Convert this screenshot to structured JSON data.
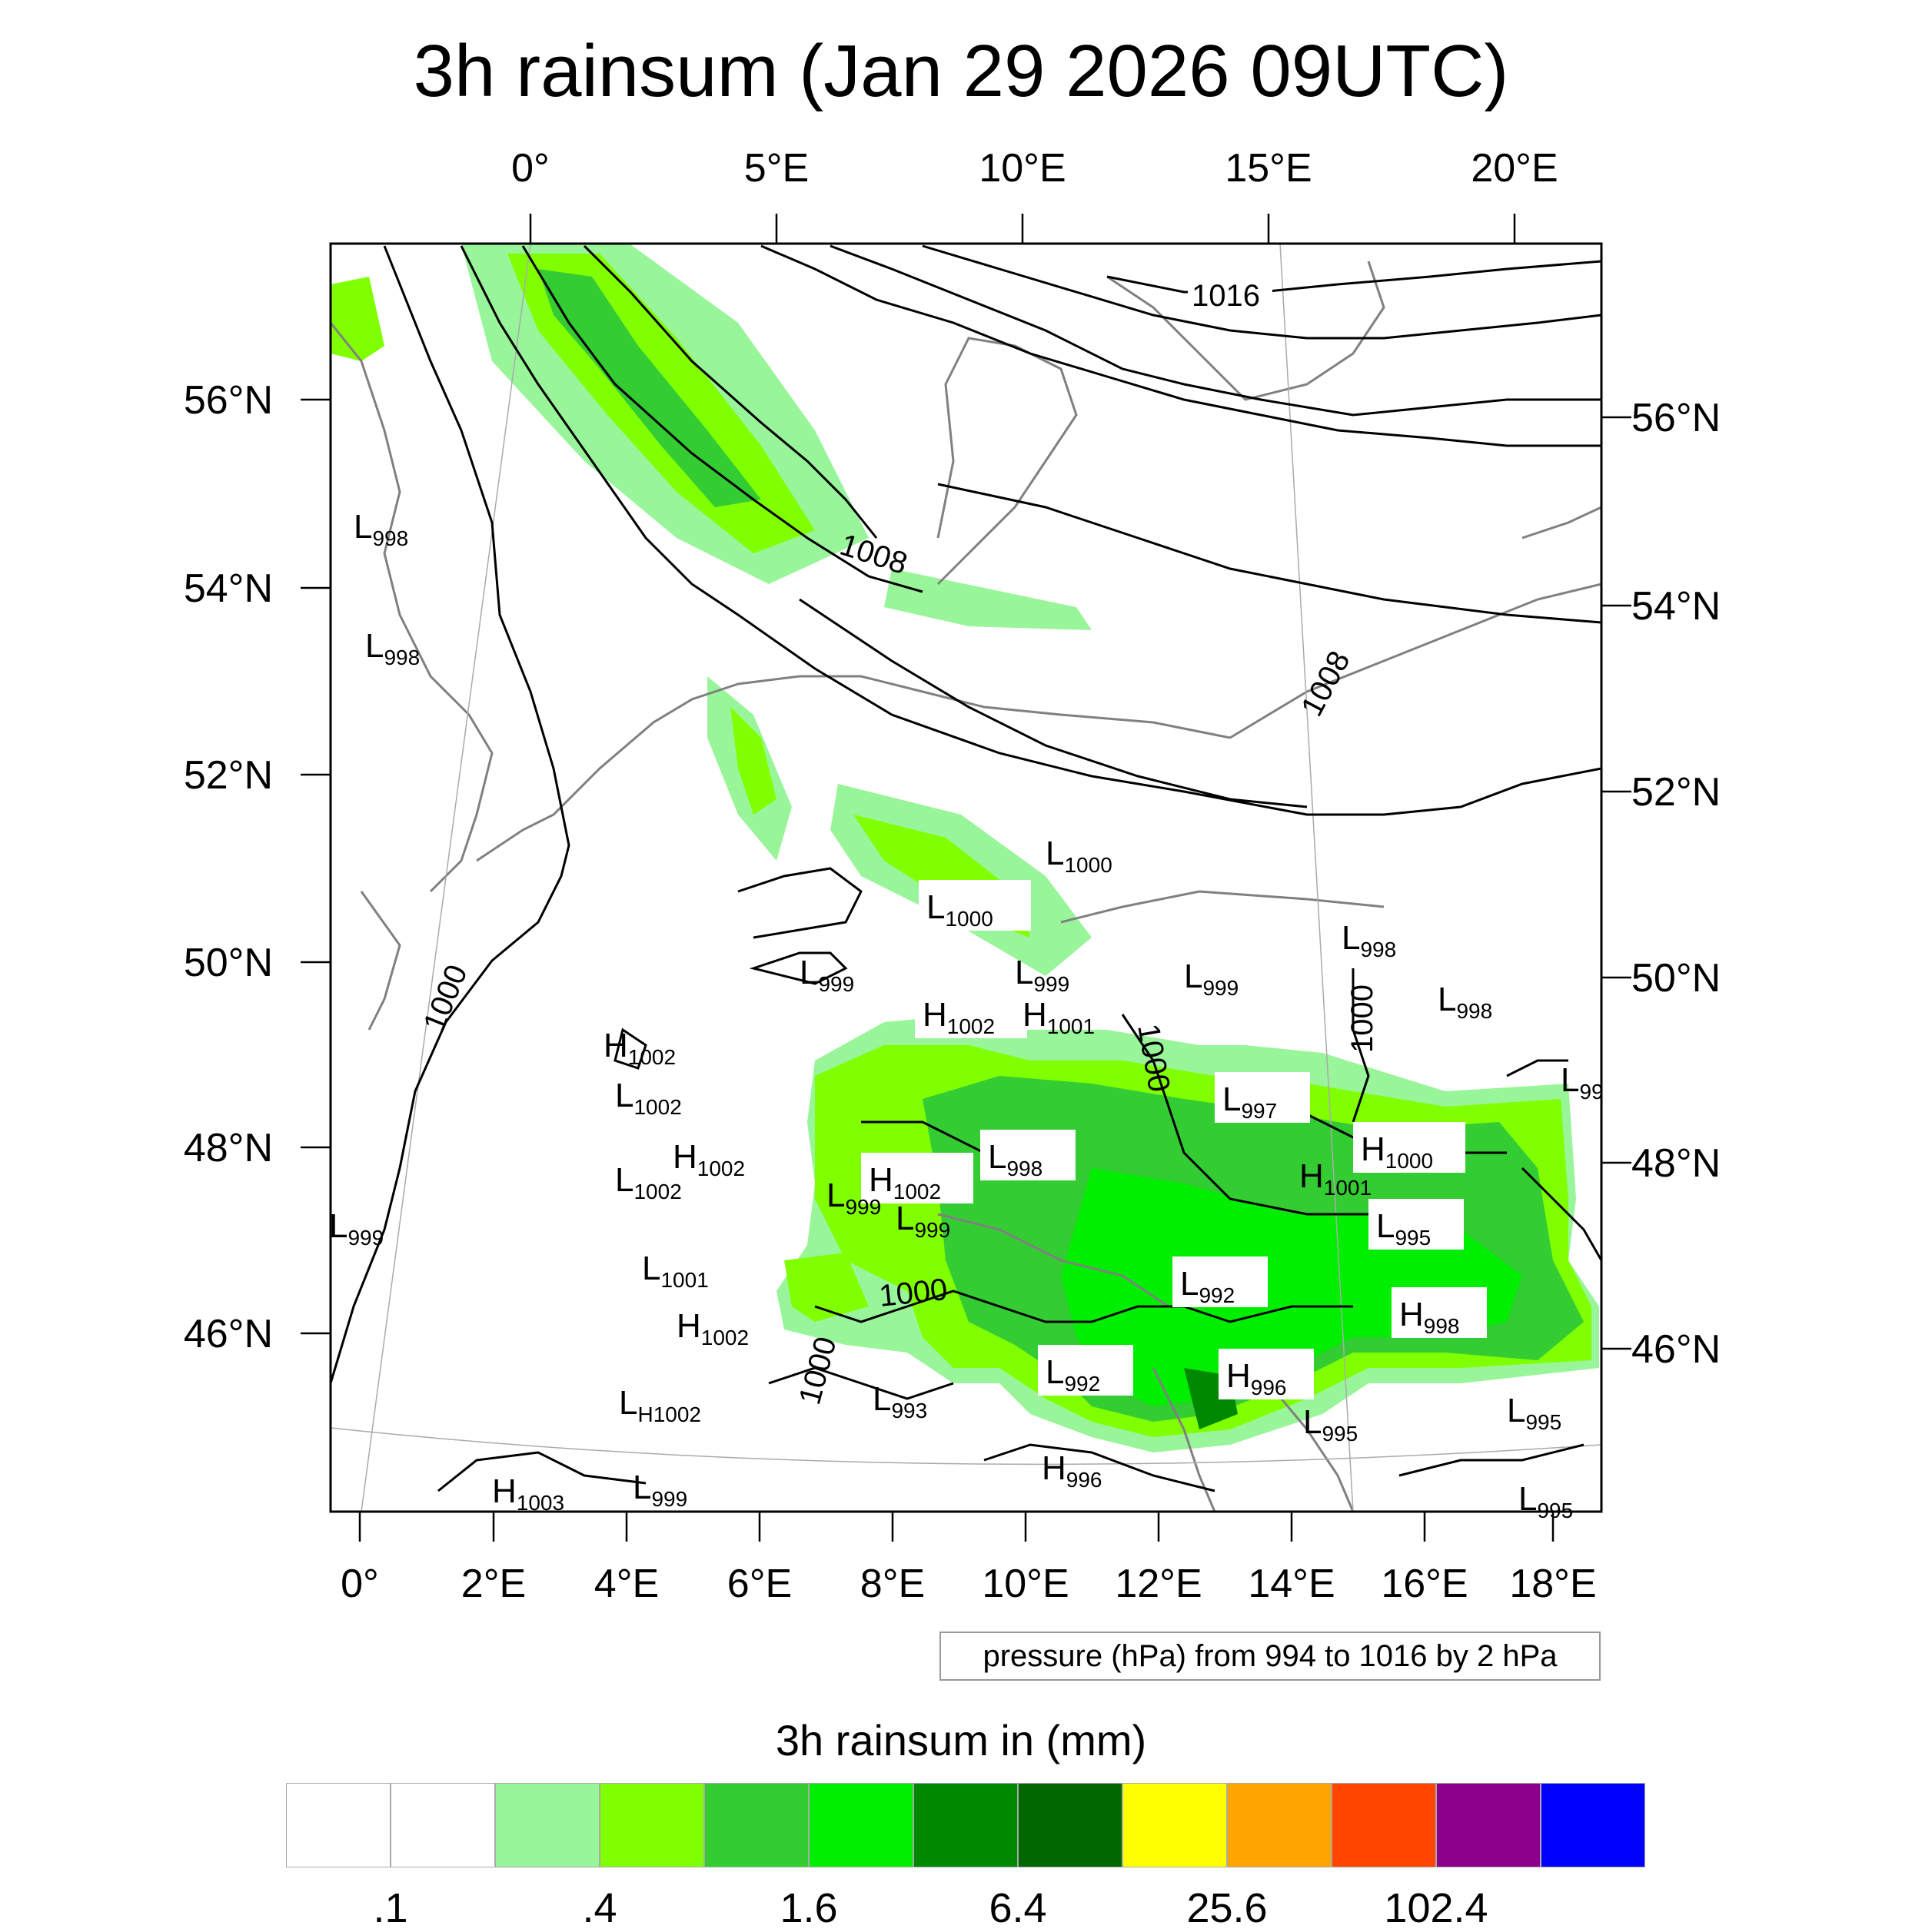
{
  "title": "3h rainsum (Jan 29 2026 09UTC)",
  "top_axis": [
    "0°",
    "5°E",
    "10°E",
    "15°E",
    "20°E"
  ],
  "bottom_axis": [
    "0°",
    "2°E",
    "4°E",
    "6°E",
    "8°E",
    "10°E",
    "12°E",
    "14°E",
    "16°E",
    "18°E"
  ],
  "left_axis": [
    "56°N",
    "54°N",
    "52°N",
    "50°N",
    "48°N",
    "46°N"
  ],
  "right_axis": [
    "56°N",
    "54°N",
    "52°N",
    "50°N",
    "48°N",
    "46°N"
  ],
  "isobar_labels": [
    "1016",
    "1008",
    "1008",
    "1000",
    "1000",
    "1000",
    "1000",
    "1000"
  ],
  "pressure_centers": [
    {
      "type": "L",
      "value": "998"
    },
    {
      "type": "L",
      "value": "998"
    },
    {
      "type": "L",
      "value": "999"
    },
    {
      "type": "H",
      "value": "1002"
    },
    {
      "type": "L",
      "value": "1002"
    },
    {
      "type": "H",
      "value": "1002"
    },
    {
      "type": "L",
      "value": "1002"
    },
    {
      "type": "L",
      "value": "1001"
    },
    {
      "type": "H",
      "value": "1002"
    },
    {
      "type": "L",
      "value": "H1002"
    },
    {
      "type": "H",
      "value": "1003"
    },
    {
      "type": "L",
      "value": "999"
    },
    {
      "type": "L",
      "value": "1000"
    },
    {
      "type": "L",
      "value": "1000"
    },
    {
      "type": "L",
      "value": "999"
    },
    {
      "type": "L",
      "value": "999"
    },
    {
      "type": "L",
      "value": "999"
    },
    {
      "type": "L",
      "value": "998"
    },
    {
      "type": "L",
      "value": "998"
    },
    {
      "type": "H",
      "value": "1002"
    },
    {
      "type": "H",
      "value": "1001"
    },
    {
      "type": "L",
      "value": "997"
    },
    {
      "type": "L",
      "value": "998"
    },
    {
      "type": "H",
      "value": "1000"
    },
    {
      "type": "H",
      "value": "1001"
    },
    {
      "type": "H",
      "value": "1002"
    },
    {
      "type": "L",
      "value": "999"
    },
    {
      "type": "L",
      "value": "999"
    },
    {
      "type": "L",
      "value": "995"
    },
    {
      "type": "L",
      "value": "992"
    },
    {
      "type": "H",
      "value": "998"
    },
    {
      "type": "L",
      "value": "993"
    },
    {
      "type": "L",
      "value": "992"
    },
    {
      "type": "H",
      "value": "996"
    },
    {
      "type": "L",
      "value": "995"
    },
    {
      "type": "L",
      "value": "995"
    },
    {
      "type": "H",
      "value": "996"
    },
    {
      "type": "L",
      "value": "995"
    },
    {
      "type": "L",
      "value": "99"
    }
  ],
  "pressure_note": "pressure (hPa) from 994 to 1016 by 2 hPa",
  "legend_title": "3h rainsum in (mm)",
  "colorbar": {
    "colors": [
      "#ffffff",
      "#ffffff",
      "#99f599",
      "#80ff00",
      "#33cc33",
      "#00ee00",
      "#008800",
      "#006600",
      "#ffff00",
      "#ffa500",
      "#ff4500",
      "#8b008b",
      "#0000ff"
    ],
    "labels": [
      ".1",
      ".4",
      "1.6",
      "6.4",
      "25.6",
      "102.4"
    ]
  },
  "colors": {
    "light_green": "#99f599",
    "lime": "#80ff00",
    "mid_green": "#33cc33",
    "bright_green": "#00ee00",
    "dark_green": "#008800",
    "coast": "#808080",
    "isobar": "#000000"
  }
}
